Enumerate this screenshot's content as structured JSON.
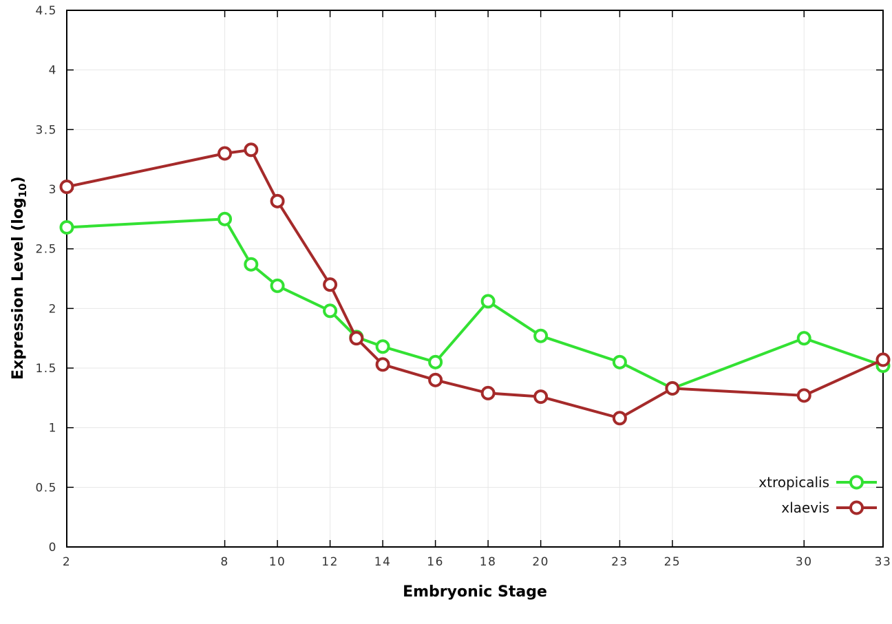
{
  "chart_data": {
    "type": "line",
    "title": "",
    "xlabel": "Embryonic Stage",
    "ylabel": "Expression Level (log10)",
    "ylabel_parts": {
      "prefix": "Expression Level (log",
      "sub": "10",
      "suffix": ")"
    },
    "xlim": [
      2,
      33
    ],
    "ylim": [
      0,
      4.5
    ],
    "x_ticks": [
      2,
      8,
      10,
      12,
      14,
      16,
      18,
      20,
      23,
      25,
      30,
      33
    ],
    "y_ticks": [
      0,
      0.5,
      1,
      1.5,
      2,
      2.5,
      3,
      3.5,
      4,
      4.5
    ],
    "y_tick_labels": [
      "0",
      "0.5",
      "1",
      "1.5",
      "2",
      "2.5",
      "3",
      "3.5",
      "4",
      "4.5"
    ],
    "grid": true,
    "legend_position": "bottom-right",
    "x": [
      2,
      8,
      9,
      10,
      12,
      13,
      14,
      16,
      18,
      20,
      23,
      25,
      30,
      33
    ],
    "series": [
      {
        "name": "xtropicalis",
        "color": "#33e133",
        "values": [
          2.68,
          2.75,
          2.37,
          2.19,
          1.98,
          1.76,
          1.68,
          1.55,
          2.06,
          1.77,
          1.55,
          1.33,
          1.75,
          1.52
        ]
      },
      {
        "name": "xlaevis",
        "color": "#a52a2a",
        "values": [
          3.02,
          3.3,
          3.33,
          2.9,
          2.2,
          1.75,
          1.53,
          1.4,
          1.29,
          1.26,
          1.08,
          1.33,
          1.27,
          1.57
        ]
      }
    ]
  }
}
